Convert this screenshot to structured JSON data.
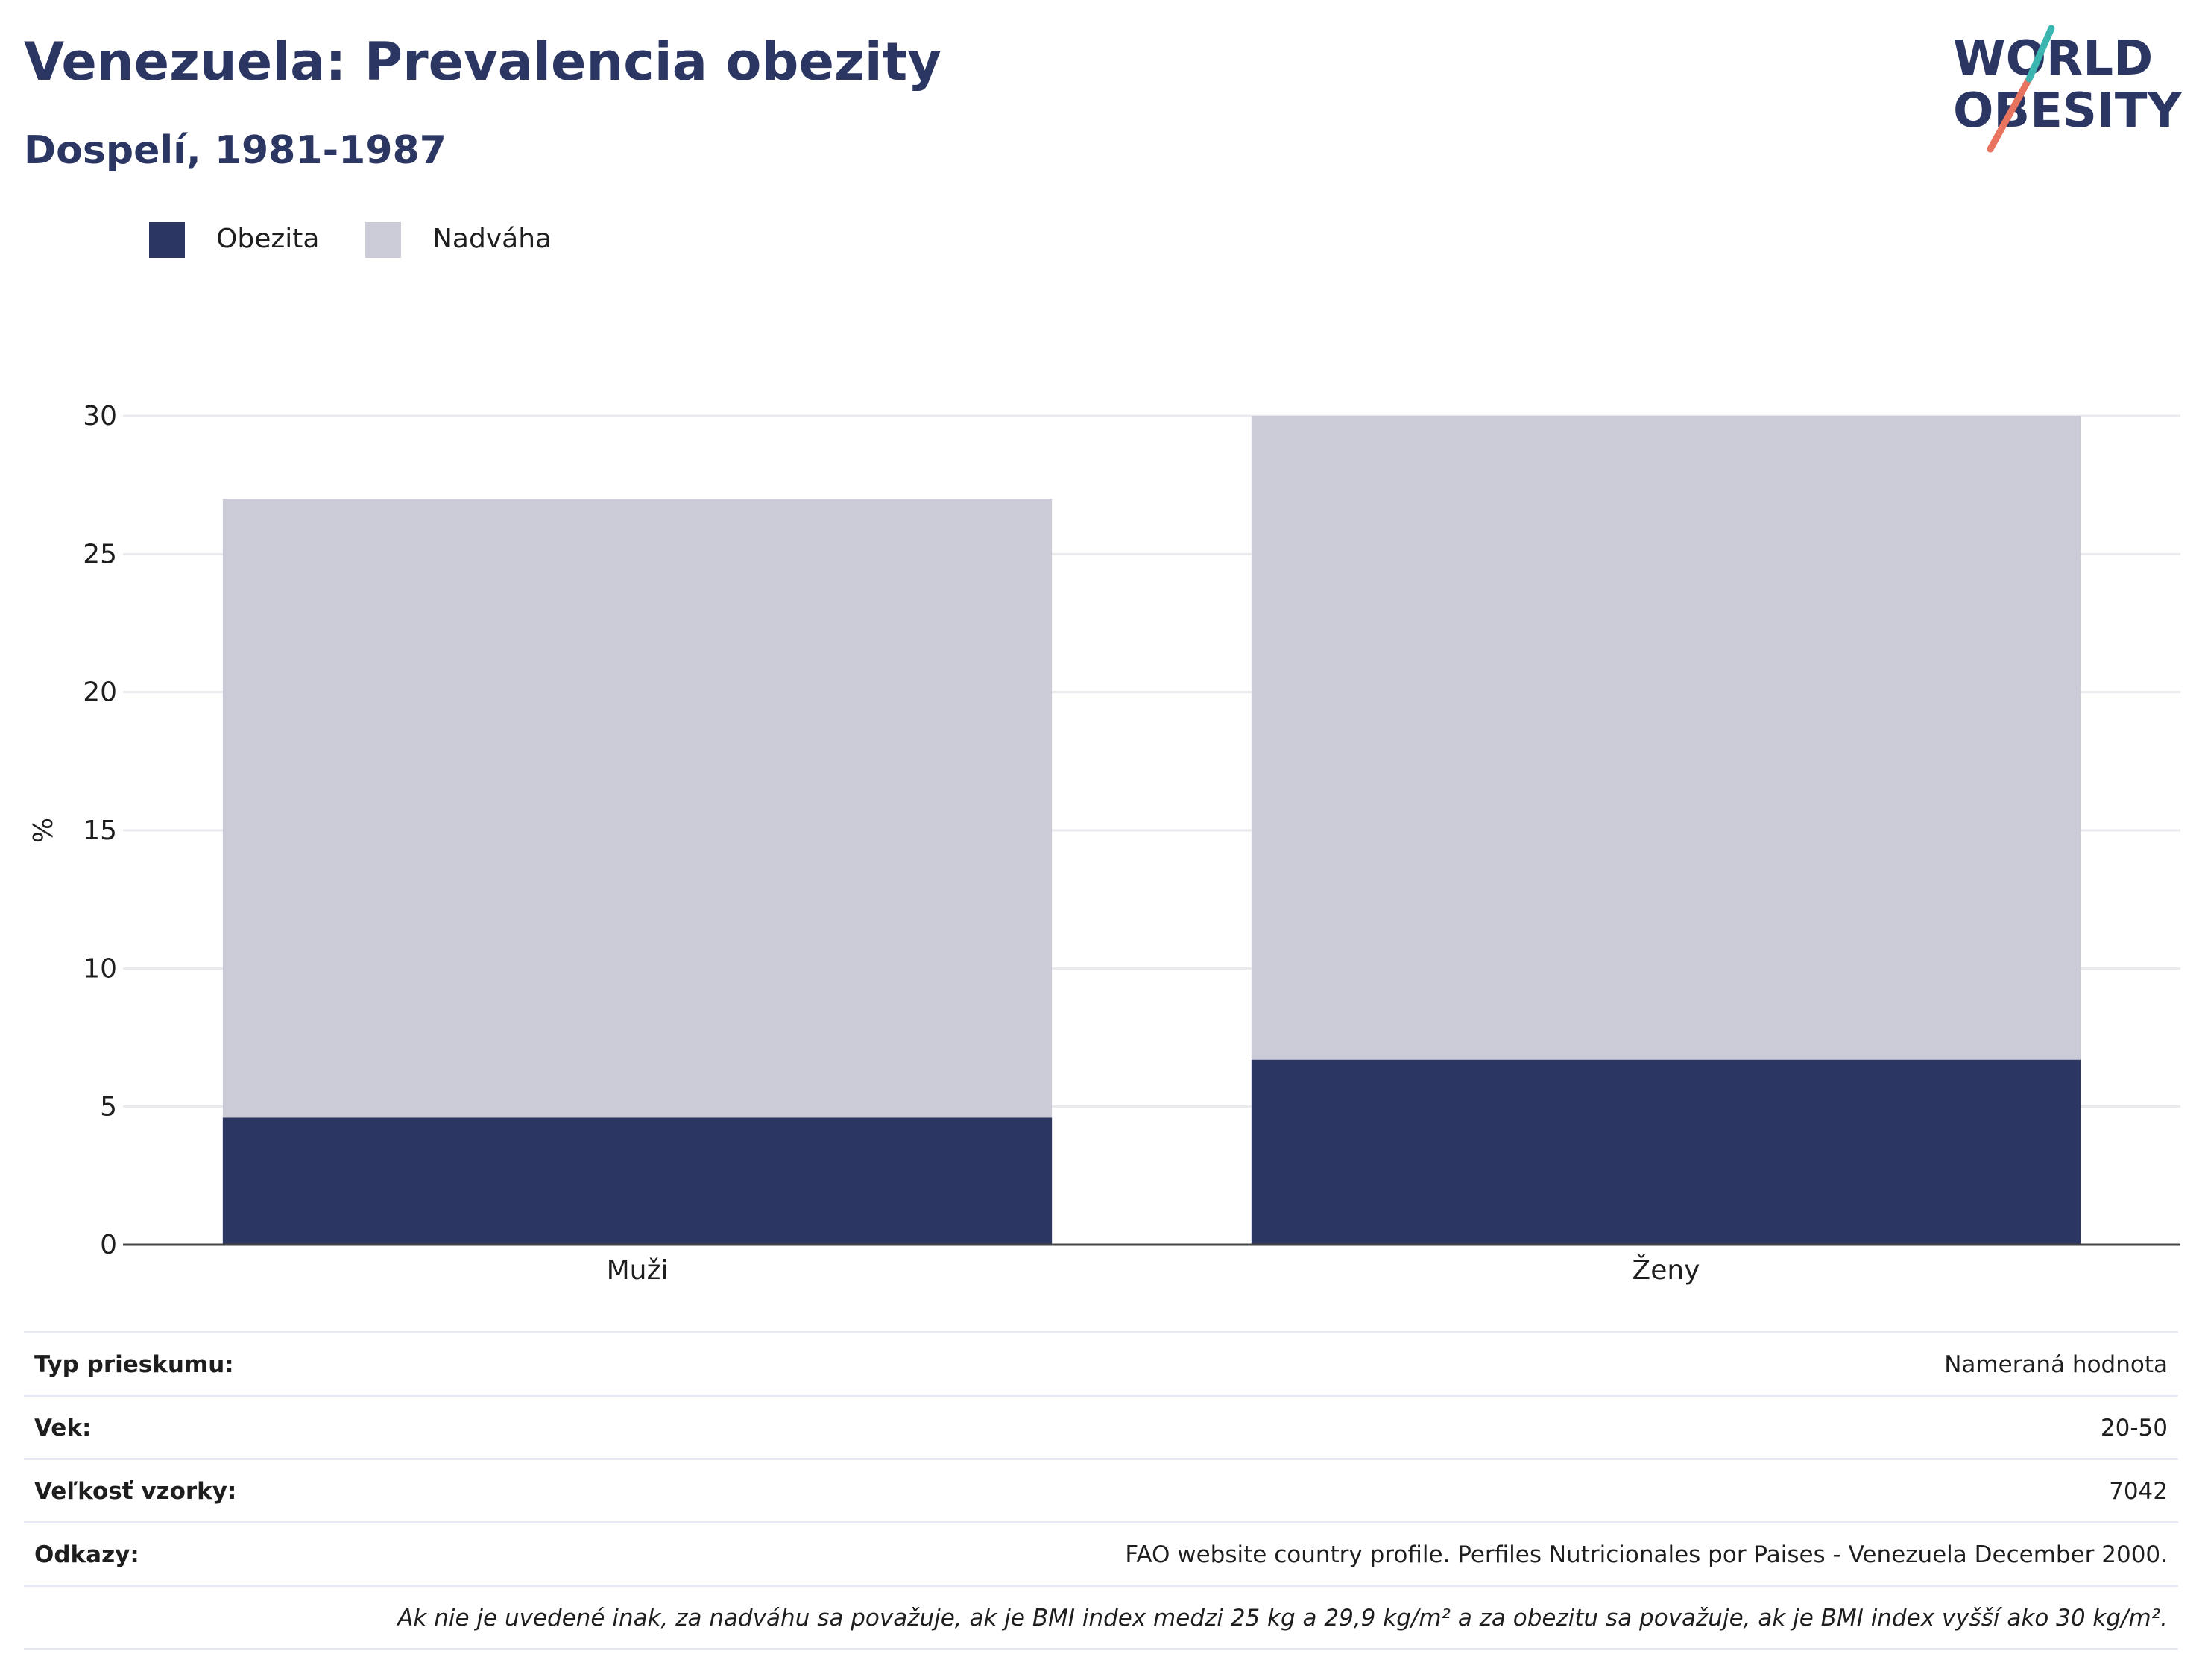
{
  "header": {
    "title": "Venezuela: Prevalencia obezity",
    "subtitle": "Dospelí, 1981-1987"
  },
  "logo": {
    "line1": "WORLD",
    "line2": "OBESITY"
  },
  "colors": {
    "obesity": "#2b3663",
    "overweight": "#cacbd6",
    "title": "#2b3663",
    "logo_teal": "#3ab5b0",
    "logo_coral": "#e8735f"
  },
  "chart_data": {
    "type": "bar",
    "stacked": true,
    "categories": [
      "Muži",
      "Ženy"
    ],
    "series": [
      {
        "name": "Obezita",
        "values": [
          4.6,
          6.7
        ]
      },
      {
        "name": "Nadváha",
        "values": [
          22.4,
          23.3
        ]
      }
    ],
    "ylabel": "%",
    "ylim": [
      0,
      30
    ],
    "yticks": [
      0,
      5,
      10,
      15,
      20,
      25,
      30
    ],
    "grid": true,
    "legend_position": "top-left"
  },
  "info": [
    {
      "key": "Typ prieskumu:",
      "value": "Nameraná hodnota"
    },
    {
      "key": "Vek:",
      "value": "20-50"
    },
    {
      "key": "Veľkosť vzorky:",
      "value": "7042"
    },
    {
      "key": "Odkazy:",
      "value": "FAO website country profile. Perfiles Nutricionales por Paises - Venezuela December 2000."
    }
  ],
  "note": "Ak nie je uvedené inak, za nadváhu sa považuje, ak je BMI index medzi 25 kg a 29,9 kg/m² a za obezitu sa považuje, ak je BMI index vyšší ako 30 kg/m²."
}
